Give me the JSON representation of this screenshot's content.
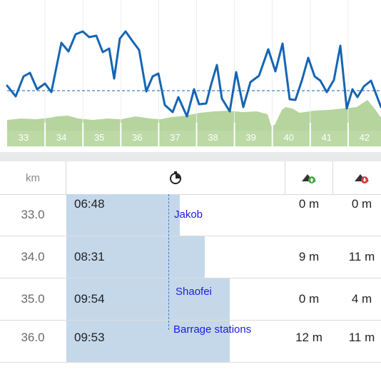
{
  "chart": {
    "km_labels": [
      "33",
      "34",
      "35",
      "36",
      "37",
      "38",
      "39",
      "40",
      "41",
      "42"
    ],
    "colors": {
      "pace_line": "#1565b4",
      "average_line": "#3f7fc4",
      "elevation_fill": "#a9cd8c",
      "km_band": "#bcd9a6"
    }
  },
  "table": {
    "headers": {
      "km": "km",
      "time_icon": "stopwatch-icon",
      "ascent_icon": "ascent-icon",
      "descent_icon": "descent-icon"
    },
    "rows": [
      {
        "km": "33.0",
        "time": "06:48",
        "ascent": "0 m",
        "descent": "0 m",
        "poi": "Jakob",
        "progress": 0.36
      },
      {
        "km": "34.0",
        "time": "08:31",
        "ascent": "9 m",
        "descent": "11 m",
        "poi": "",
        "progress": 0.44
      },
      {
        "km": "35.0",
        "time": "09:54",
        "ascent": "0 m",
        "descent": "4 m",
        "poi": "Shaofei",
        "progress": 0.52
      },
      {
        "km": "36.0",
        "time": "09:53",
        "ascent": "12 m",
        "descent": "11 m",
        "poi": "Barrage stations",
        "progress": 0.52
      }
    ]
  }
}
